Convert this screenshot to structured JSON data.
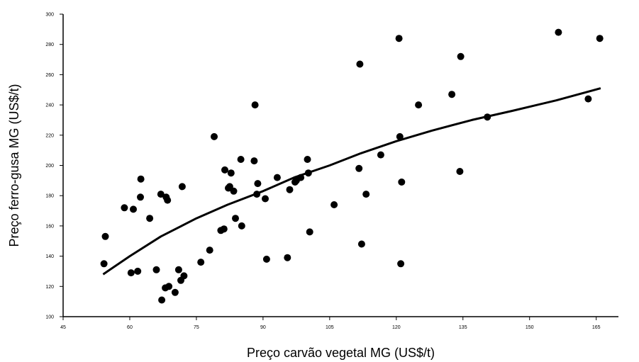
{
  "chart_data": {
    "type": "scatter",
    "title": "",
    "xlabel": "Preço carvão vegetal MG (US$/t)",
    "ylabel": "Preço ferro-gusa MG (US$/t)",
    "xlim": [
      45,
      170
    ],
    "ylim": [
      100,
      300
    ],
    "x_ticks": [
      45,
      60,
      75,
      90,
      105,
      120,
      135,
      150,
      165
    ],
    "x_tick_labels": [
      "45",
      "60",
      "75",
      "90",
      "105",
      "120",
      "135",
      "150",
      "165"
    ],
    "y_ticks": [
      100,
      120,
      140,
      160,
      180,
      200,
      220,
      240,
      260,
      280,
      300
    ],
    "y_tick_labels": [
      "100",
      "120",
      "140",
      "160",
      "180",
      "200",
      "220",
      "240",
      "260",
      "280",
      "300"
    ],
    "grid": false,
    "legend": "none",
    "colors": {
      "points": "#000000",
      "trend_line": "#000000",
      "axis": "#000000"
    },
    "series": [
      {
        "type": "scatter",
        "points": [
          {
            "x": 54.5,
            "y": 153
          },
          {
            "x": 54.2,
            "y": 135
          },
          {
            "x": 58.8,
            "y": 172
          },
          {
            "x": 60.8,
            "y": 171
          },
          {
            "x": 60.3,
            "y": 129
          },
          {
            "x": 61.8,
            "y": 130
          },
          {
            "x": 62.5,
            "y": 191
          },
          {
            "x": 62.4,
            "y": 179
          },
          {
            "x": 64.5,
            "y": 165
          },
          {
            "x": 66.0,
            "y": 131
          },
          {
            "x": 67.0,
            "y": 181
          },
          {
            "x": 68.2,
            "y": 179
          },
          {
            "x": 68.5,
            "y": 177
          },
          {
            "x": 67.2,
            "y": 111
          },
          {
            "x": 68.0,
            "y": 119
          },
          {
            "x": 68.8,
            "y": 120
          },
          {
            "x": 70.2,
            "y": 116
          },
          {
            "x": 71.0,
            "y": 131
          },
          {
            "x": 71.5,
            "y": 124
          },
          {
            "x": 72.2,
            "y": 127
          },
          {
            "x": 71.8,
            "y": 186
          },
          {
            "x": 76.0,
            "y": 136
          },
          {
            "x": 78.0,
            "y": 144
          },
          {
            "x": 79.0,
            "y": 219
          },
          {
            "x": 80.5,
            "y": 157
          },
          {
            "x": 81.2,
            "y": 158
          },
          {
            "x": 81.4,
            "y": 197
          },
          {
            "x": 82.2,
            "y": 185
          },
          {
            "x": 82.5,
            "y": 186
          },
          {
            "x": 82.8,
            "y": 195
          },
          {
            "x": 83.4,
            "y": 183
          },
          {
            "x": 83.8,
            "y": 165
          },
          {
            "x": 85.2,
            "y": 160
          },
          {
            "x": 85.0,
            "y": 204
          },
          {
            "x": 88.0,
            "y": 203
          },
          {
            "x": 88.2,
            "y": 240
          },
          {
            "x": 88.8,
            "y": 188
          },
          {
            "x": 88.6,
            "y": 181
          },
          {
            "x": 90.5,
            "y": 178
          },
          {
            "x": 90.8,
            "y": 138
          },
          {
            "x": 93.2,
            "y": 192
          },
          {
            "x": 95.5,
            "y": 139
          },
          {
            "x": 96.0,
            "y": 184
          },
          {
            "x": 97.2,
            "y": 189
          },
          {
            "x": 97.5,
            "y": 190
          },
          {
            "x": 98.5,
            "y": 192
          },
          {
            "x": 100.0,
            "y": 204
          },
          {
            "x": 100.2,
            "y": 195
          },
          {
            "x": 100.5,
            "y": 156
          },
          {
            "x": 106.0,
            "y": 174
          },
          {
            "x": 111.8,
            "y": 267
          },
          {
            "x": 111.6,
            "y": 198
          },
          {
            "x": 112.2,
            "y": 148
          },
          {
            "x": 113.2,
            "y": 181
          },
          {
            "x": 116.5,
            "y": 207
          },
          {
            "x": 120.6,
            "y": 284
          },
          {
            "x": 120.8,
            "y": 219
          },
          {
            "x": 121.2,
            "y": 189
          },
          {
            "x": 121.0,
            "y": 135
          },
          {
            "x": 125.0,
            "y": 240
          },
          {
            "x": 132.5,
            "y": 247
          },
          {
            "x": 134.5,
            "y": 272
          },
          {
            "x": 134.3,
            "y": 196
          },
          {
            "x": 140.5,
            "y": 232
          },
          {
            "x": 156.5,
            "y": 288
          },
          {
            "x": 163.2,
            "y": 244
          },
          {
            "x": 165.8,
            "y": 284
          }
        ]
      },
      {
        "type": "line",
        "points": [
          {
            "x": 54.0,
            "y": 128
          },
          {
            "x": 60.0,
            "y": 140
          },
          {
            "x": 67.0,
            "y": 153
          },
          {
            "x": 75.0,
            "y": 165
          },
          {
            "x": 82.0,
            "y": 174
          },
          {
            "x": 90.0,
            "y": 183
          },
          {
            "x": 97.0,
            "y": 192
          },
          {
            "x": 105.0,
            "y": 200
          },
          {
            "x": 112.0,
            "y": 208
          },
          {
            "x": 120.0,
            "y": 216
          },
          {
            "x": 128.0,
            "y": 223
          },
          {
            "x": 137.0,
            "y": 230
          },
          {
            "x": 146.0,
            "y": 236
          },
          {
            "x": 156.0,
            "y": 243
          },
          {
            "x": 166.0,
            "y": 251
          }
        ]
      }
    ]
  }
}
